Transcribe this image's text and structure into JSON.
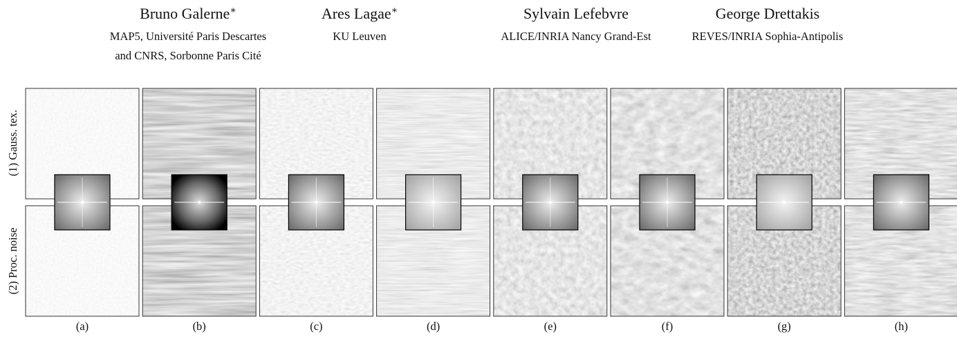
{
  "authors": [
    {
      "name": "Bruno Galerne",
      "mark": "∗",
      "affiliation": [
        "MAP5, Université Paris Descartes",
        "and CNRS, Sorbonne Paris Cité"
      ]
    },
    {
      "name": "Ares Lagae",
      "mark": "∗",
      "affiliation": [
        "KU Leuven"
      ]
    },
    {
      "name": "Sylvain Lefebvre",
      "affiliation": [
        "ALICE/INRIA Nancy Grand-Est"
      ]
    },
    {
      "name": "George Drettakis",
      "affiliation": [
        "REVES/INRIA Sophia-Antipolis"
      ]
    }
  ],
  "row_labels": [
    "(1) Gauss. tex.",
    "(2) Proc. noise"
  ],
  "panels": [
    "(a)",
    "(b)",
    "(c)",
    "(d)",
    "(e)",
    "(f)",
    "(g)",
    "(h)"
  ]
}
